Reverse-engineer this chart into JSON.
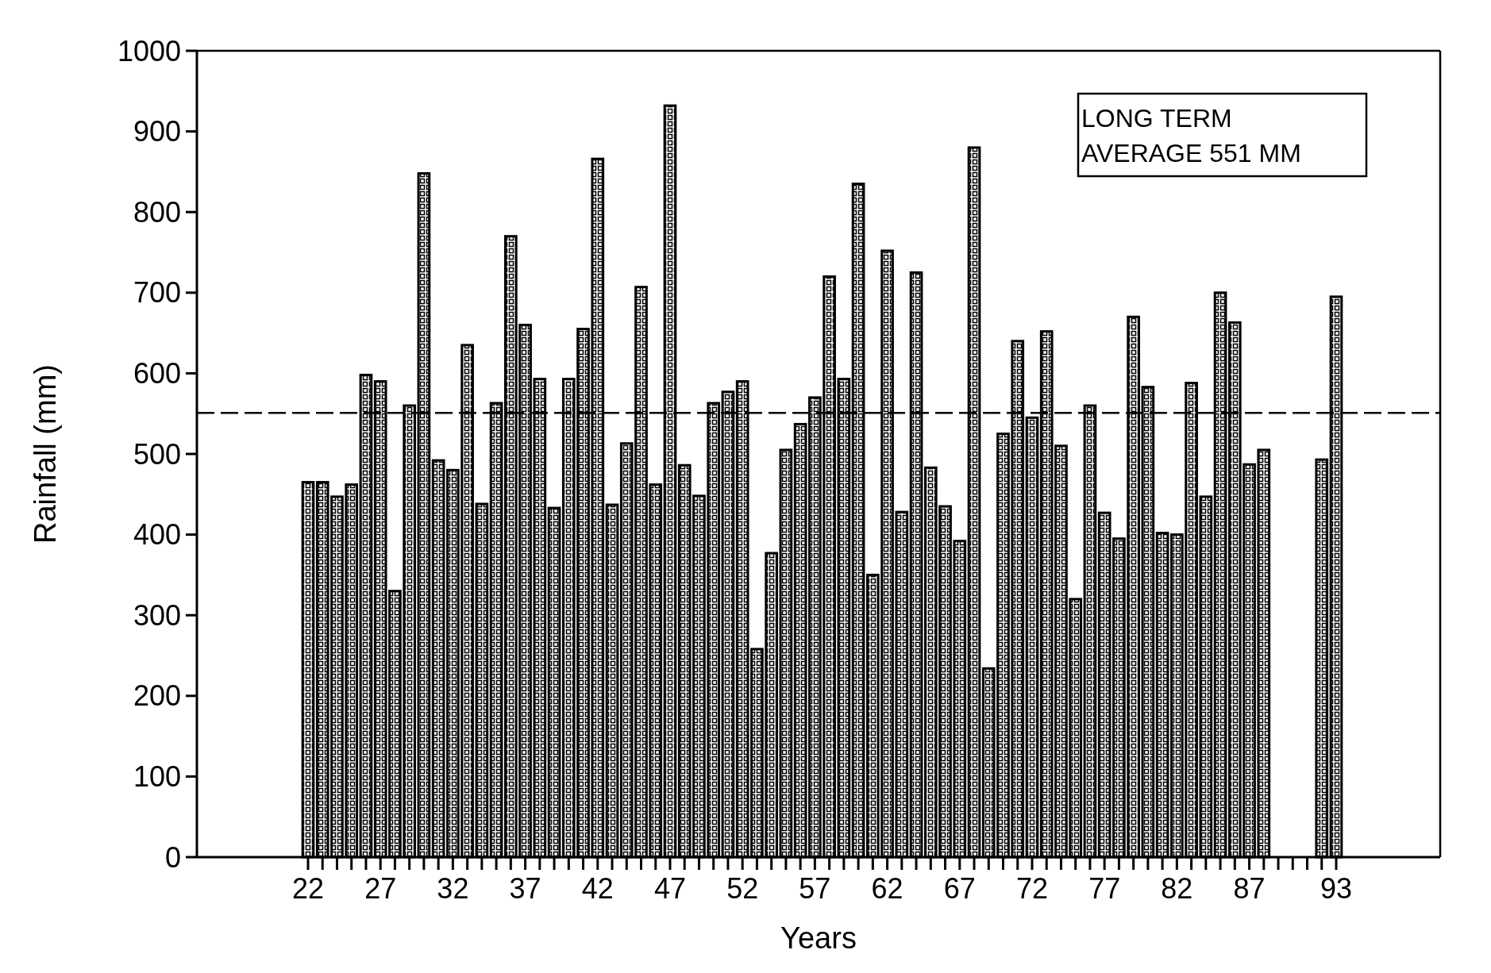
{
  "chart_data": {
    "type": "bar",
    "xlabel": "Years",
    "ylabel": "Rainfall (mm)",
    "categories": [
      "22",
      null,
      null,
      null,
      null,
      "27",
      null,
      null,
      null,
      null,
      "32",
      null,
      null,
      null,
      null,
      "37",
      null,
      null,
      null,
      null,
      "42",
      null,
      null,
      null,
      null,
      "47",
      null,
      null,
      null,
      null,
      "52",
      null,
      null,
      null,
      null,
      "57",
      null,
      null,
      null,
      null,
      "62",
      null,
      null,
      null,
      null,
      "67",
      null,
      null,
      null,
      null,
      "72",
      null,
      null,
      null,
      null,
      "77",
      null,
      null,
      null,
      null,
      "82",
      null,
      null,
      null,
      null,
      "87",
      null,
      null,
      null,
      null,
      null,
      "93"
    ],
    "series": [
      {
        "color": "#000000",
        "values": [
          465,
          465,
          447,
          462,
          598,
          590,
          330,
          560,
          848,
          492,
          480,
          635,
          438,
          563,
          770,
          660,
          593,
          433,
          593,
          655,
          866,
          437,
          513,
          707,
          462,
          932,
          486,
          448,
          563,
          577,
          590,
          258,
          377,
          505,
          537,
          570,
          720,
          593,
          835,
          350,
          752,
          428,
          725,
          483,
          435,
          392,
          880,
          234,
          525,
          640,
          545,
          652,
          510,
          320,
          560,
          427,
          395,
          670,
          583,
          402,
          400,
          588,
          447,
          700,
          663,
          487,
          505,
          null,
          null,
          null,
          493,
          695
        ]
      }
    ],
    "ylim": [
      0,
      1000
    ],
    "yticks": [
      0,
      100,
      200,
      300,
      400,
      500,
      600,
      700,
      800,
      900,
      1000
    ],
    "ref_lines": [
      {
        "axis": "y",
        "value": 551,
        "label": "LONG TERM\nAVERAGE 551 MM",
        "line_style": "dashed"
      }
    ],
    "grid": false
  }
}
